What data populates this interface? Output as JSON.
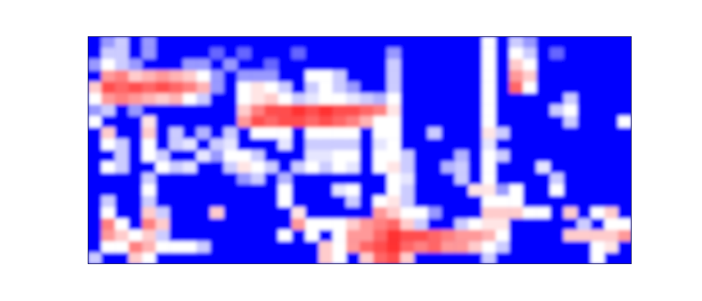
{
  "chart_data": {
    "type": "heatmap",
    "tick_labels": false,
    "zlim": [
      0,
      1
    ],
    "z": [
      [
        0,
        0.3,
        0.4,
        0,
        0.3,
        0,
        0,
        0,
        0,
        0,
        0,
        0,
        0,
        0,
        0,
        0,
        0,
        0,
        0,
        0,
        0,
        0,
        0,
        0,
        0,
        0,
        0,
        0,
        0,
        0.5,
        0,
        0.4,
        0.3,
        0,
        0,
        0,
        0,
        0,
        0,
        0
      ],
      [
        0,
        0.4,
        0.4,
        0,
        0.3,
        0,
        0,
        0,
        0,
        0.2,
        0,
        0.2,
        0,
        0,
        0,
        0.2,
        0,
        0,
        0,
        0,
        0,
        0,
        0.3,
        0,
        0,
        0,
        0,
        0,
        0,
        0.5,
        0,
        0.5,
        0.4,
        0,
        0.2,
        0,
        0,
        0,
        0,
        0
      ],
      [
        0.3,
        0.5,
        0.4,
        0.3,
        0,
        0,
        0,
        0.3,
        0.3,
        0,
        0.3,
        0,
        0,
        0.2,
        0,
        0,
        0,
        0,
        0,
        0,
        0,
        0,
        0.4,
        0,
        0,
        0,
        0,
        0,
        0,
        0.5,
        0,
        0.6,
        0.5,
        0,
        0,
        0,
        0,
        0,
        0,
        0
      ],
      [
        0,
        0.7,
        0.75,
        0.6,
        0.65,
        0.7,
        0.65,
        0.6,
        0.5,
        0.3,
        0,
        0.3,
        0.3,
        0.3,
        0,
        0,
        0.5,
        0.5,
        0.4,
        0,
        0,
        0,
        0.4,
        0,
        0,
        0,
        0,
        0,
        0,
        0.5,
        0,
        0.7,
        0.6,
        0,
        0,
        0,
        0,
        0,
        0,
        0
      ],
      [
        0.6,
        0.85,
        0.8,
        0.85,
        0.8,
        0.85,
        0.8,
        0.75,
        0.65,
        0.3,
        0,
        0.5,
        0.55,
        0.5,
        0.4,
        0,
        0.4,
        0.5,
        0.4,
        0.3,
        0,
        0,
        0.4,
        0,
        0,
        0,
        0,
        0,
        0,
        0.5,
        0,
        0.8,
        0.5,
        0,
        0,
        0,
        0,
        0,
        0,
        0
      ],
      [
        0.5,
        0.7,
        0.75,
        0.7,
        0.65,
        0.6,
        0.65,
        0.5,
        0.4,
        0,
        0,
        0.5,
        0.55,
        0.6,
        0.5,
        0.4,
        0.45,
        0.5,
        0.5,
        0.45,
        0.4,
        0.35,
        0.5,
        0,
        0,
        0,
        0,
        0,
        0,
        0.5,
        0,
        0,
        0,
        0,
        0,
        0.4,
        0,
        0,
        0,
        0
      ],
      [
        0.3,
        0.4,
        0,
        0.3,
        0,
        0,
        0,
        0,
        0,
        0,
        0,
        0.6,
        0.75,
        0.85,
        0.85,
        0.9,
        0.85,
        0.9,
        0.85,
        0.85,
        0.8,
        0.75,
        0.55,
        0,
        0,
        0,
        0,
        0,
        0,
        0.5,
        0,
        0,
        0,
        0,
        0.4,
        0.5,
        0,
        0,
        0,
        0
      ],
      [
        0.5,
        0,
        0,
        0,
        0.55,
        0,
        0,
        0,
        0,
        0,
        0,
        0.7,
        0.85,
        0.8,
        0.85,
        0.85,
        0.8,
        0.85,
        0.8,
        0.75,
        0.65,
        0.5,
        0.5,
        0,
        0,
        0,
        0,
        0,
        0,
        0.5,
        0,
        0,
        0,
        0,
        0,
        0.4,
        0,
        0,
        0,
        0.5
      ],
      [
        0,
        0.6,
        0,
        0,
        0.6,
        0,
        0.4,
        0,
        0.35,
        0,
        0.4,
        0,
        0.5,
        0.5,
        0.5,
        0,
        0.5,
        0.5,
        0.5,
        0.5,
        0,
        0.5,
        0.5,
        0,
        0,
        0.4,
        0,
        0,
        0,
        0.55,
        0.4,
        0,
        0,
        0,
        0,
        0,
        0,
        0,
        0,
        0
      ],
      [
        0,
        0.5,
        0.4,
        0,
        0.5,
        0,
        0.4,
        0.45,
        0,
        0.4,
        0.45,
        0,
        0,
        0,
        0.45,
        0,
        0.4,
        0.4,
        0.4,
        0.4,
        0,
        0.45,
        0.5,
        0,
        0,
        0,
        0,
        0,
        0,
        0.45,
        0,
        0,
        0,
        0,
        0,
        0,
        0,
        0,
        0,
        0
      ],
      [
        0,
        0,
        0.4,
        0,
        0.5,
        0.4,
        0,
        0,
        0.45,
        0.3,
        0.5,
        0.5,
        0.4,
        0,
        0,
        0,
        0.45,
        0.45,
        0.5,
        0.5,
        0,
        0.5,
        0.5,
        0.4,
        0,
        0,
        0,
        0.35,
        0,
        0.5,
        0.4,
        0,
        0,
        0,
        0,
        0,
        0,
        0,
        0,
        0
      ],
      [
        0,
        0.5,
        0.4,
        0,
        0,
        0.5,
        0.4,
        0.45,
        0,
        0,
        0.4,
        0.55,
        0.5,
        0.4,
        0,
        0.4,
        0.5,
        0.4,
        0.5,
        0.45,
        0,
        0.5,
        0.55,
        0.4,
        0,
        0,
        0.35,
        0.4,
        0,
        0.5,
        0,
        0,
        0,
        0.45,
        0,
        0,
        0,
        0,
        0,
        0
      ],
      [
        0,
        0,
        0,
        0,
        0.4,
        0,
        0,
        0,
        0,
        0,
        0,
        0.3,
        0.4,
        0,
        0.35,
        0,
        0,
        0,
        0,
        0,
        0,
        0,
        0.5,
        0.45,
        0,
        0,
        0,
        0.4,
        0,
        0.5,
        0,
        0,
        0,
        0,
        0.4,
        0,
        0,
        0,
        0,
        0
      ],
      [
        0,
        0,
        0,
        0,
        0.5,
        0,
        0,
        0,
        0,
        0,
        0,
        0,
        0,
        0,
        0.5,
        0,
        0,
        0,
        0.45,
        0.5,
        0,
        0,
        0.5,
        0.4,
        0,
        0,
        0,
        0,
        0.55,
        0.55,
        0.3,
        0.5,
        0,
        0,
        0.5,
        0,
        0,
        0,
        0,
        0
      ],
      [
        0,
        0.4,
        0,
        0,
        0.4,
        0,
        0,
        0,
        0,
        0,
        0,
        0,
        0,
        0,
        0.5,
        0,
        0,
        0,
        0,
        0.4,
        0,
        0.5,
        0.55,
        0.4,
        0,
        0,
        0,
        0,
        0,
        0.5,
        0.5,
        0.5,
        0,
        0,
        0,
        0,
        0,
        0,
        0,
        0
      ],
      [
        0,
        0.5,
        0,
        0,
        0.6,
        0.4,
        0,
        0,
        0,
        0.6,
        0,
        0,
        0,
        0,
        0,
        0.55,
        0,
        0,
        0,
        0,
        0,
        0.7,
        0.6,
        0.5,
        0.5,
        0.3,
        0,
        0,
        0,
        0.6,
        0.6,
        0.6,
        0.5,
        0.5,
        0,
        0.6,
        0,
        0.5,
        0.6,
        0
      ],
      [
        0,
        0.75,
        0.5,
        0,
        0.75,
        0.6,
        0,
        0,
        0,
        0,
        0,
        0,
        0,
        0,
        0,
        0.7,
        0.5,
        0.5,
        0.5,
        0.6,
        0.7,
        0.75,
        0.8,
        0.6,
        0.4,
        0,
        0,
        0.4,
        0.5,
        0.55,
        0.55,
        0,
        0,
        0,
        0,
        0,
        0.4,
        0,
        0.5,
        0.5
      ],
      [
        0,
        0.7,
        0.6,
        0.5,
        0.6,
        0.4,
        0,
        0,
        0,
        0,
        0,
        0,
        0,
        0,
        0.5,
        0,
        0.5,
        0,
        0.5,
        0.7,
        0.7,
        0.8,
        0.9,
        0.85,
        0.85,
        0.8,
        0.75,
        0.7,
        0.7,
        0.65,
        0.5,
        0,
        0,
        0,
        0,
        0.6,
        0.6,
        0.6,
        0.6,
        0.7
      ],
      [
        0,
        0.5,
        0.5,
        0.75,
        0.65,
        0.5,
        0.5,
        0.5,
        0.4,
        0,
        0,
        0,
        0,
        0,
        0,
        0,
        0,
        0.6,
        0.5,
        0.7,
        0.8,
        0.85,
        0.9,
        0.8,
        0.75,
        0.8,
        0.7,
        0.7,
        0.6,
        0.5,
        0.4,
        0,
        0,
        0,
        0,
        0,
        0,
        0.5,
        0.55,
        0
      ],
      [
        0.4,
        0,
        0,
        0.6,
        0.5,
        0,
        0,
        0,
        0,
        0,
        0,
        0,
        0,
        0,
        0,
        0,
        0,
        0.6,
        0.5,
        0,
        0.6,
        0.8,
        0.85,
        0.6,
        0,
        0,
        0,
        0,
        0,
        0.4,
        0,
        0,
        0,
        0,
        0,
        0,
        0,
        0.5,
        0,
        0
      ]
    ]
  }
}
